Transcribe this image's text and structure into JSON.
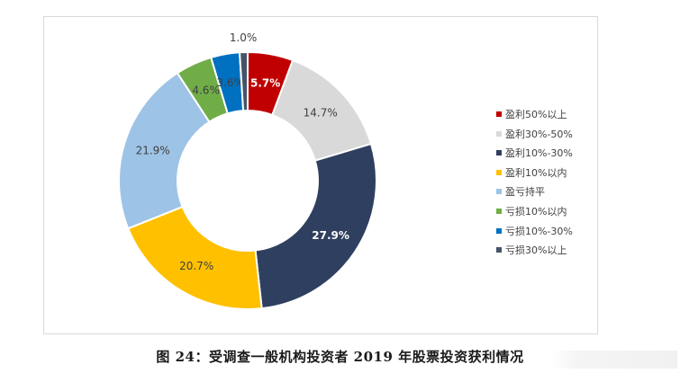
{
  "chart_data": {
    "type": "pie",
    "donut": true,
    "categories": [
      "盈利50%以上",
      "盈利30%-50%",
      "盈利10%-30%",
      "盈利10%以内",
      "盈亏持平",
      "亏损10%以内",
      "亏损10%-30%",
      "亏损30%以上"
    ],
    "values": [
      5.7,
      14.7,
      27.9,
      20.7,
      21.9,
      4.6,
      3.6,
      1.0
    ],
    "data_labels": [
      "5.7%",
      "14.7%",
      "27.9%",
      "20.7%",
      "21.9%",
      "4.6%",
      "3.6%",
      "1.0%"
    ],
    "colors": [
      "#c00000",
      "#d9d9d9",
      "#2f3f5f",
      "#ffc000",
      "#9dc3e6",
      "#70ad47",
      "#0070c0",
      "#44546a"
    ],
    "label_colors": [
      "#ffffff",
      "#404040",
      "#ffffff",
      "#404040",
      "#404040",
      "#404040",
      "#404040",
      "#404040"
    ],
    "legend_position": "right"
  },
  "caption": "图 24：受调查一般机构投资者 2019 年股票投资获利情况"
}
